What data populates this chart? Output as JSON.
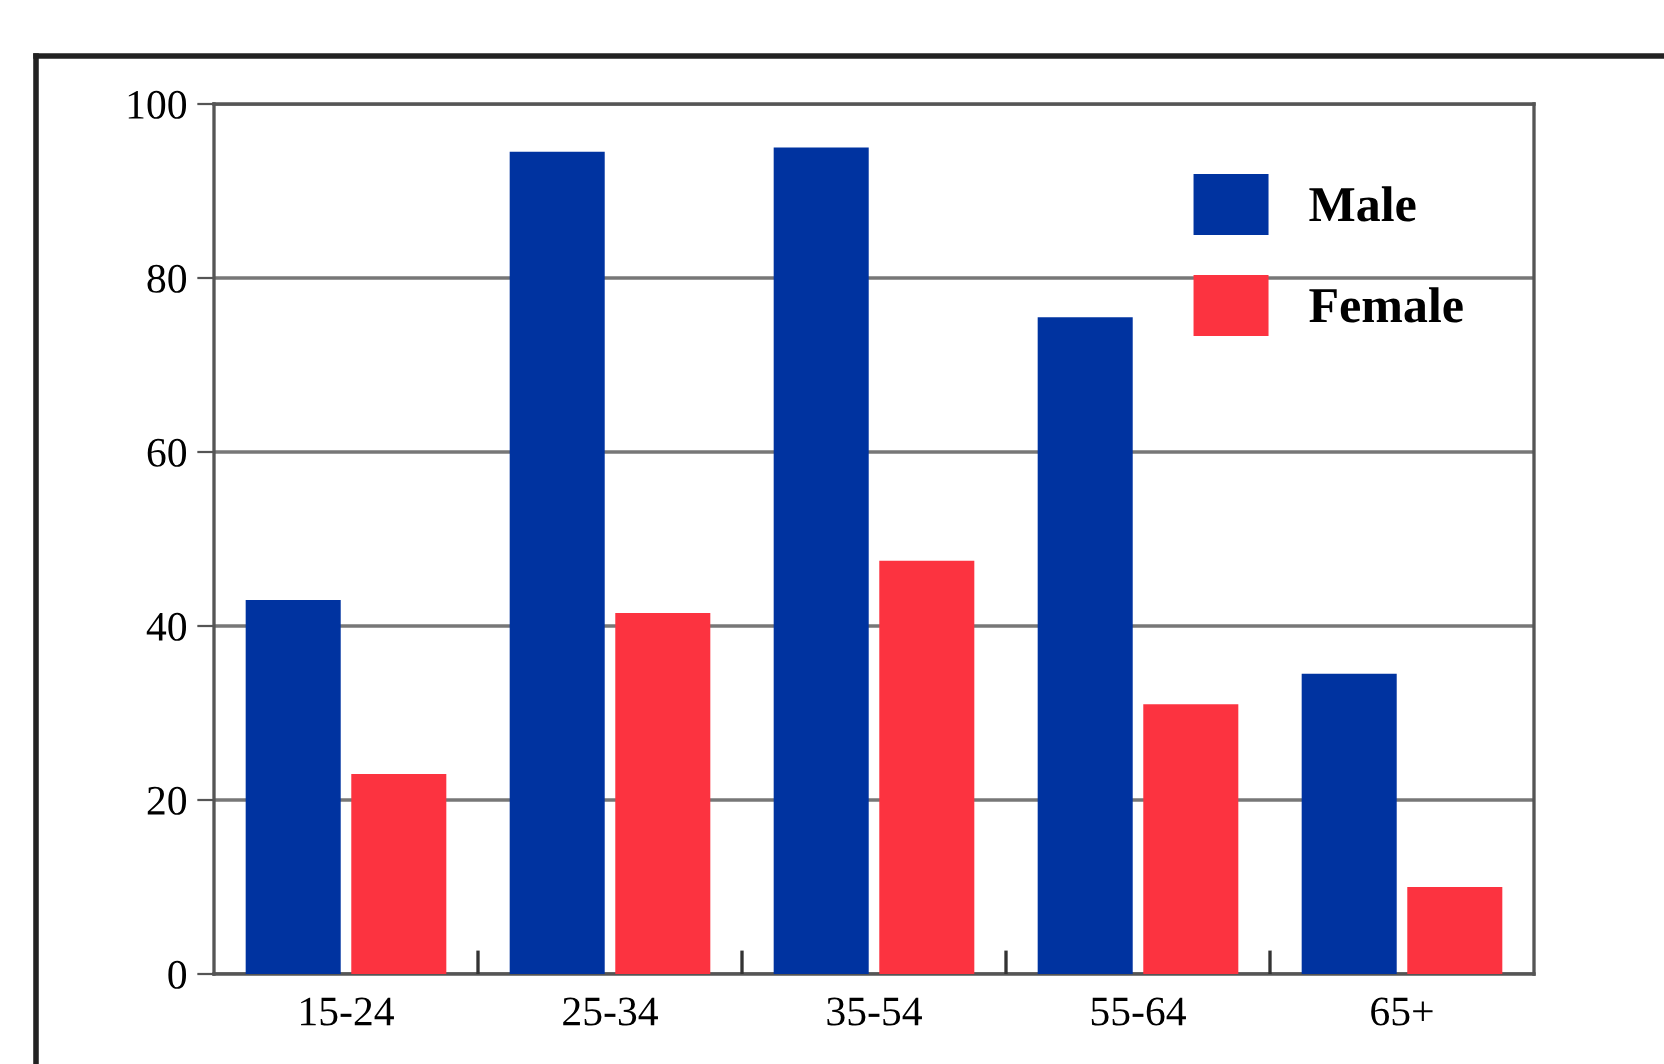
{
  "chart_data": {
    "type": "bar",
    "categories": [
      "15-24",
      "25-34",
      "35-54",
      "55-64",
      "65+"
    ],
    "series": [
      {
        "name": "Male",
        "color": "#0033a0",
        "values": [
          43,
          94.5,
          95,
          75.5,
          34.5
        ]
      },
      {
        "name": "Female",
        "color": "#fc3340",
        "values": [
          23,
          41.5,
          47.5,
          31,
          10
        ]
      }
    ],
    "ylim": [
      0,
      100
    ],
    "yticks": [
      0,
      20,
      40,
      60,
      80,
      100
    ],
    "grid": "y",
    "legend": "top right"
  }
}
